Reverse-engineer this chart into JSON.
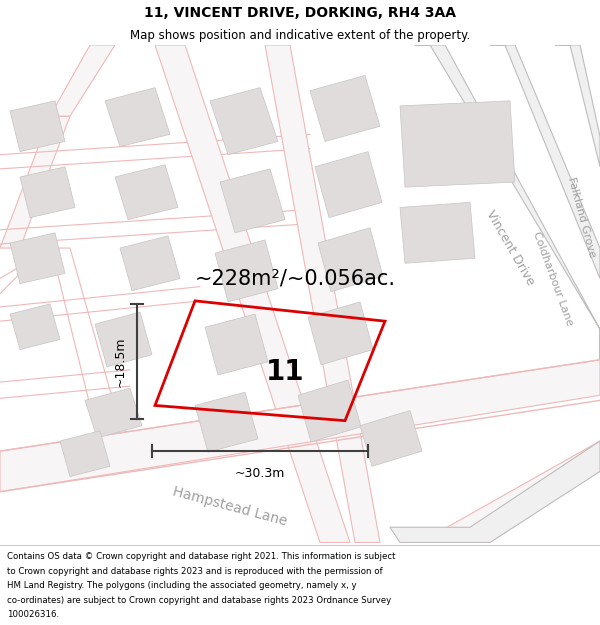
{
  "title": "11, VINCENT DRIVE, DORKING, RH4 3AA",
  "subtitle": "Map shows position and indicative extent of the property.",
  "area_text": "~228m²/~0.056ac.",
  "width_label": "~30.3m",
  "height_label": "~18.5m",
  "plot_number": "11",
  "footer_lines": [
    "Contains OS data © Crown copyright and database right 2021. This information is subject",
    "to Crown copyright and database rights 2023 and is reproduced with the permission of",
    "HM Land Registry. The polygons (including the associated geometry, namely x, y",
    "co-ordinates) are subject to Crown copyright and database rights 2023 Ordnance Survey",
    "100026316."
  ],
  "bg_color": "#f7f5f5",
  "road_stroke": "#f0b8b8",
  "road_fill": "#f7f5f5",
  "building_fill": "#e0dcdc",
  "building_stroke": "#c8c4c4",
  "red_plot_color": "#dd0000",
  "dim_line_color": "#404040",
  "road_gray": "#c0bcbc",
  "road_label_color": "#a0a0a0",
  "title_fontsize": 10,
  "subtitle_fontsize": 8.5,
  "area_fontsize": 15,
  "plot_num_fontsize": 20,
  "road_label_fontsize": 9,
  "footer_fontsize": 6.2,
  "dim_fontsize": 9
}
